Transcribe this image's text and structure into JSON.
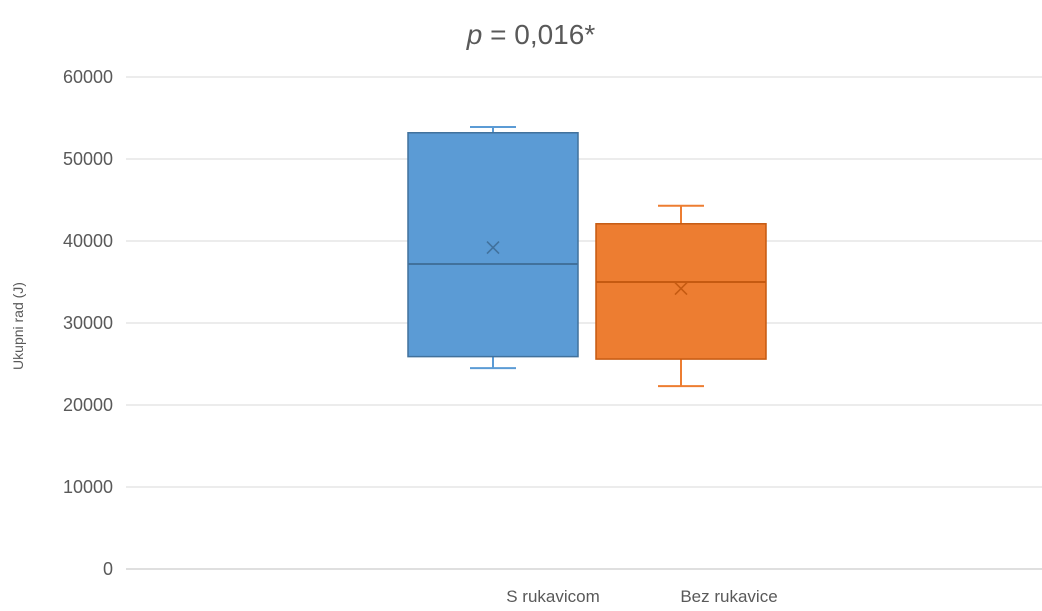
{
  "chart_data": {
    "type": "box",
    "title": {
      "p_symbol": "p",
      "value": "= 0,016*"
    },
    "ylabel": "Ukupni rad (J)",
    "xlabel": "",
    "ylim": [
      0,
      60000
    ],
    "yticks": [
      0,
      10000,
      20000,
      30000,
      40000,
      50000,
      60000
    ],
    "ytick_labels": [
      "0",
      "10000",
      "20000",
      "30000",
      "40000",
      "50000",
      "60000"
    ],
    "grid": true,
    "legend": "bottom",
    "series": [
      {
        "name": "S rukavicom",
        "color": "#5b9bd5",
        "min": 24500,
        "q1": 25900,
        "median": 37200,
        "mean": 39200,
        "q3": 53200,
        "max": 53900
      },
      {
        "name": "Bez rukavice",
        "color": "#ed7d31",
        "min": 22300,
        "q1": 25600,
        "median": 35000,
        "mean": 34200,
        "q3": 42100,
        "max": 44300
      }
    ]
  },
  "colors": {
    "grid": "#d9d9d9",
    "axis": "#bfbfbf",
    "text": "#595959"
  }
}
